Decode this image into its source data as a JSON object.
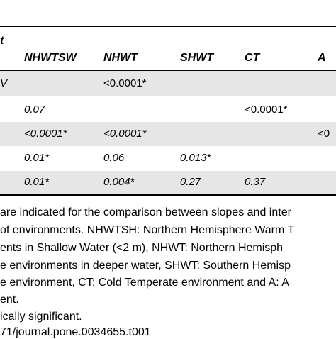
{
  "table": {
    "stub_header": "t",
    "columns": [
      "NHWTSW",
      "NHWT",
      "SHWT",
      "CT",
      "A"
    ],
    "rows": [
      [
        "V",
        "",
        "<0.0001*",
        "",
        "",
        ""
      ],
      [
        "",
        "0.07",
        "",
        "",
        "<0.0001*",
        ""
      ],
      [
        "",
        "<0.0001*",
        "<0.0001*",
        "",
        "",
        "<0"
      ],
      [
        "",
        "0.01*",
        "0.06",
        "0.013*",
        "",
        ""
      ],
      [
        "",
        "0.01*",
        "0.004*",
        "0.27",
        "0.37",
        ""
      ]
    ]
  },
  "footnotes": [
    "are indicated for the comparison between slopes and inter",
    "of environments. NHWTSH: Northern Hemisphere Warm T",
    "ents in Shallow Water (<2 m), NHWT: Northern Hemisph",
    "e environments in deeper water, SHWT: Southern Hemisp",
    "e environment, CT: Cold Temperate environment and A: A",
    "ent.",
    "ically significant.",
    "71/journal.pone.0034655.t001"
  ]
}
